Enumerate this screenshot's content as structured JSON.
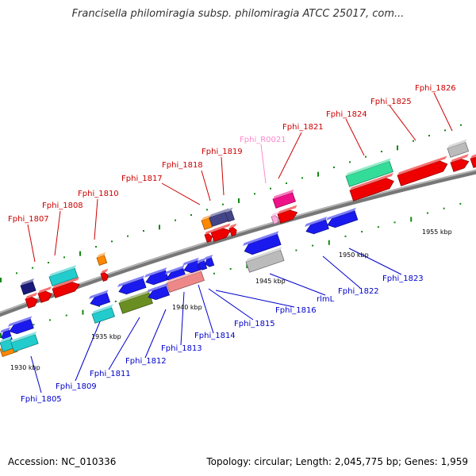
{
  "title": "Francisella philomiragia subsp. philomiragia ATCC 25017, com...",
  "accession": "Accession: NC_010336",
  "summary": "Topology: circular; Length: 2,045,775 bp; Genes: 1,959",
  "colors": {
    "forward_label": "#cc0000",
    "reverse_label": "#0000cc",
    "rna_label": "#ff88cc",
    "backbone": "#808080",
    "tick": "#007700"
  },
  "scale_labels": [
    "1930 kbp",
    "1935 kbp",
    "1940 kbp",
    "1945 kbp",
    "1950 kbp",
    "1955 kbp"
  ],
  "forward_labels": [
    "Fphi_1807",
    "Fphi_1808",
    "Fphi_1810",
    "Fphi_1817",
    "Fphi_1818",
    "Fphi_1819",
    "Fphi_1821",
    "Fphi_1824",
    "Fphi_1825",
    "Fphi_1826"
  ],
  "rna_labels": [
    "Fphi_R0021"
  ],
  "reverse_labels": [
    "Fphi_1805",
    "Fphi_1809",
    "Fphi_1811",
    "Fphi_1812",
    "Fphi_1813",
    "Fphi_1814",
    "Fphi_1815",
    "Fphi_1816",
    "rlmL",
    "Fphi_1822",
    "Fphi_1823"
  ]
}
